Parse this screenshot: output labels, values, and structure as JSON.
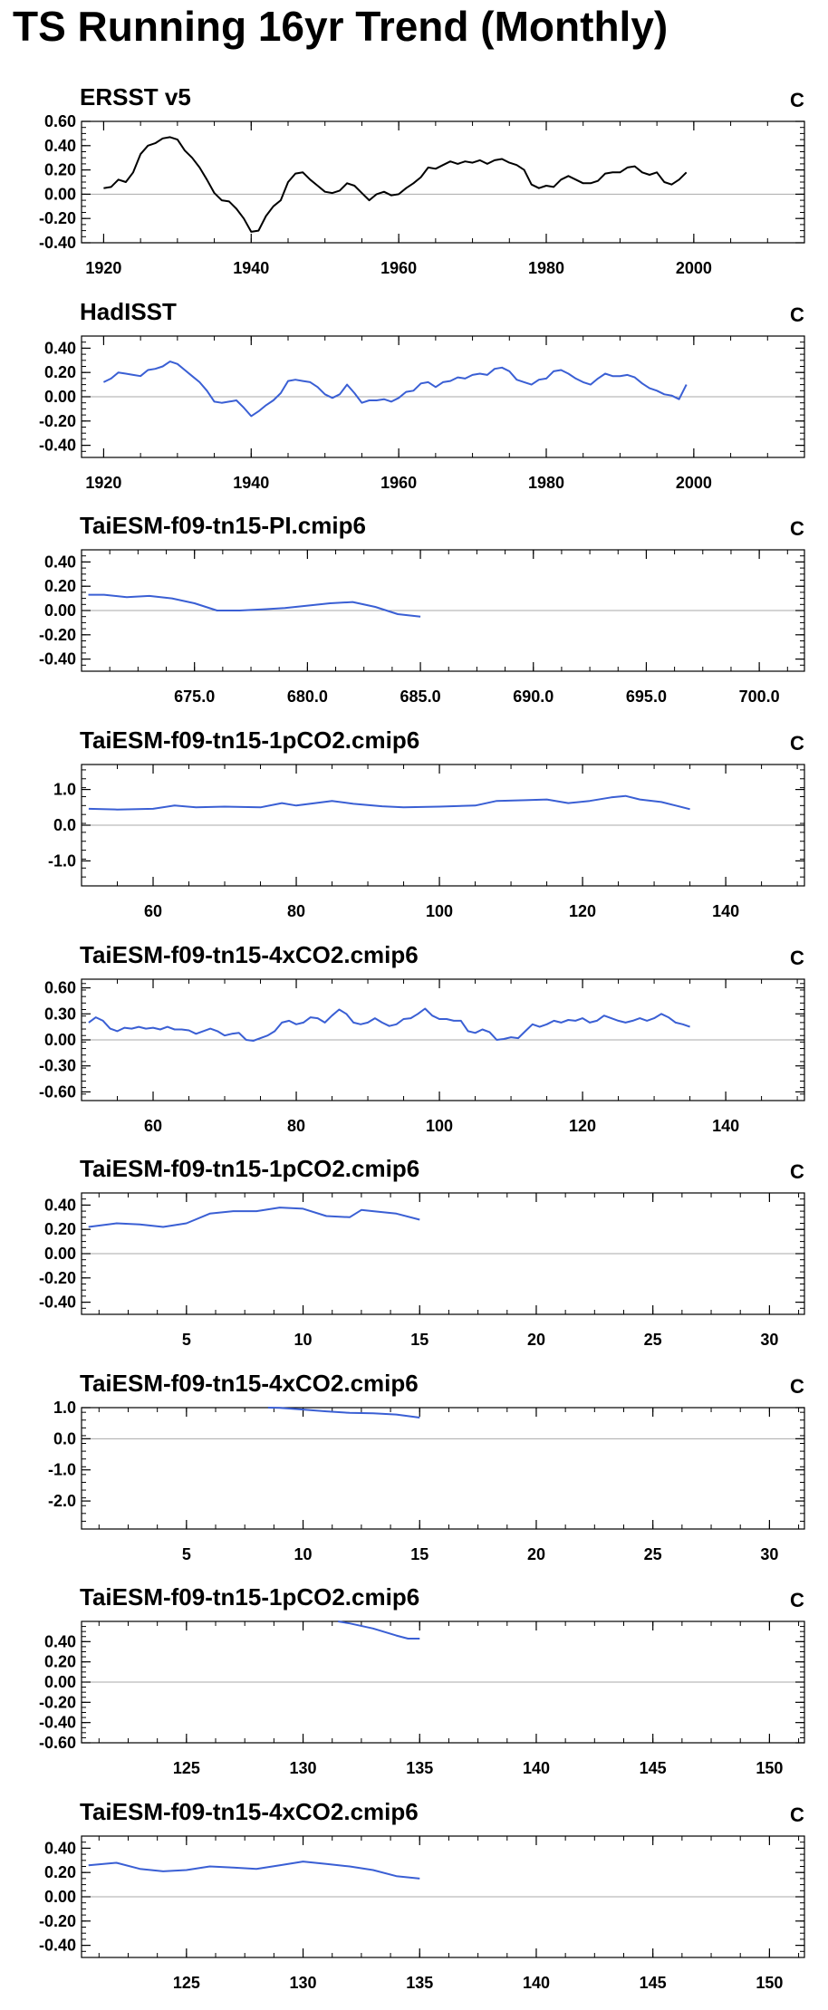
{
  "title": "TS Running 16yr Trend (Monthly)",
  "colors": {
    "obs_line": "#000000",
    "model_line": "#3a5fd4",
    "zero_line": "#aaaaaa",
    "axis": "#000000"
  },
  "chart_data": [
    {
      "type": "line",
      "title": "ERSST v5",
      "units": "C",
      "xlim": [
        1917,
        2015
      ],
      "ylim": [
        -0.4,
        0.6
      ],
      "xticks": [
        1920,
        1940,
        1960,
        1980,
        2000
      ],
      "xtick_labels": [
        "1920",
        "1940",
        "1960",
        "1980",
        "2000"
      ],
      "yticks": [
        -0.4,
        -0.2,
        0.0,
        0.2,
        0.4,
        0.6
      ],
      "ytick_labels": [
        "-0.40",
        "-0.20",
        "0.00",
        "0.20",
        "0.40",
        "0.60"
      ],
      "series": [
        {
          "color": "#000000",
          "x": [
            1920,
            1921,
            1922,
            1923,
            1924,
            1925,
            1926,
            1927,
            1928,
            1929,
            1930,
            1931,
            1932,
            1933,
            1934,
            1935,
            1936,
            1937,
            1938,
            1939,
            1940,
            1941,
            1942,
            1943,
            1944,
            1945,
            1946,
            1947,
            1948,
            1949,
            1950,
            1951,
            1952,
            1953,
            1954,
            1955,
            1956,
            1957,
            1958,
            1959,
            1960,
            1961,
            1962,
            1963,
            1964,
            1965,
            1966,
            1967,
            1968,
            1969,
            1970,
            1971,
            1972,
            1973,
            1974,
            1975,
            1976,
            1977,
            1978,
            1979,
            1980,
            1981,
            1982,
            1983,
            1984,
            1985,
            1986,
            1987,
            1988,
            1989,
            1990,
            1991,
            1992,
            1993,
            1994,
            1995,
            1996,
            1997,
            1998,
            1999
          ],
          "y": [
            0.05,
            0.06,
            0.12,
            0.1,
            0.18,
            0.33,
            0.4,
            0.42,
            0.46,
            0.47,
            0.45,
            0.36,
            0.3,
            0.22,
            0.12,
            0.01,
            -0.05,
            -0.06,
            -0.12,
            -0.2,
            -0.31,
            -0.3,
            -0.18,
            -0.1,
            -0.05,
            0.1,
            0.17,
            0.18,
            0.12,
            0.07,
            0.02,
            0.01,
            0.03,
            0.09,
            0.07,
            0.01,
            -0.05,
            0.0,
            0.02,
            -0.01,
            0.0,
            0.05,
            0.09,
            0.14,
            0.22,
            0.21,
            0.24,
            0.27,
            0.25,
            0.27,
            0.26,
            0.28,
            0.25,
            0.28,
            0.29,
            0.26,
            0.24,
            0.2,
            0.08,
            0.05,
            0.07,
            0.06,
            0.12,
            0.15,
            0.12,
            0.09,
            0.09,
            0.11,
            0.17,
            0.18,
            0.18,
            0.22,
            0.23,
            0.18,
            0.16,
            0.18,
            0.1,
            0.08,
            0.12,
            0.18
          ]
        }
      ]
    },
    {
      "type": "line",
      "title": "HadISST",
      "units": "C",
      "xlim": [
        1917,
        2015
      ],
      "ylim": [
        -0.5,
        0.5
      ],
      "xticks": [
        1920,
        1940,
        1960,
        1980,
        2000
      ],
      "xtick_labels": [
        "1920",
        "1940",
        "1960",
        "1980",
        "2000"
      ],
      "yticks": [
        -0.4,
        -0.2,
        0.0,
        0.2,
        0.4
      ],
      "ytick_labels": [
        "-0.40",
        "-0.20",
        "0.00",
        "0.20",
        "0.40"
      ],
      "series": [
        {
          "color": "#3a5fd4",
          "x": [
            1920,
            1921,
            1922,
            1923,
            1924,
            1925,
            1926,
            1927,
            1928,
            1929,
            1930,
            1931,
            1932,
            1933,
            1934,
            1935,
            1936,
            1937,
            1938,
            1939,
            1940,
            1941,
            1942,
            1943,
            1944,
            1945,
            1946,
            1947,
            1948,
            1949,
            1950,
            1951,
            1952,
            1953,
            1954,
            1955,
            1956,
            1957,
            1958,
            1959,
            1960,
            1961,
            1962,
            1963,
            1964,
            1965,
            1966,
            1967,
            1968,
            1969,
            1970,
            1971,
            1972,
            1973,
            1974,
            1975,
            1976,
            1977,
            1978,
            1979,
            1980,
            1981,
            1982,
            1983,
            1984,
            1985,
            1986,
            1987,
            1988,
            1989,
            1990,
            1991,
            1992,
            1993,
            1994,
            1995,
            1996,
            1997,
            1998,
            1999
          ],
          "y": [
            0.12,
            0.15,
            0.2,
            0.19,
            0.18,
            0.17,
            0.22,
            0.23,
            0.25,
            0.29,
            0.27,
            0.22,
            0.17,
            0.12,
            0.05,
            -0.04,
            -0.05,
            -0.04,
            -0.03,
            -0.09,
            -0.16,
            -0.12,
            -0.07,
            -0.03,
            0.03,
            0.13,
            0.14,
            0.13,
            0.12,
            0.08,
            0.02,
            -0.01,
            0.02,
            0.1,
            0.03,
            -0.05,
            -0.03,
            -0.03,
            -0.02,
            -0.04,
            -0.01,
            0.04,
            0.05,
            0.11,
            0.12,
            0.08,
            0.12,
            0.13,
            0.16,
            0.15,
            0.18,
            0.19,
            0.18,
            0.23,
            0.24,
            0.21,
            0.14,
            0.12,
            0.1,
            0.14,
            0.15,
            0.21,
            0.22,
            0.19,
            0.15,
            0.12,
            0.1,
            0.15,
            0.19,
            0.17,
            0.17,
            0.18,
            0.16,
            0.11,
            0.07,
            0.05,
            0.02,
            0.01,
            -0.02,
            0.1
          ]
        }
      ]
    },
    {
      "type": "line",
      "title": "TaiESM-f09-tn15-PI.cmip6",
      "units": "C",
      "xlim": [
        670,
        702
      ],
      "ylim": [
        -0.5,
        0.5
      ],
      "xticks": [
        675,
        680,
        685,
        690,
        695,
        700
      ],
      "xtick_labels": [
        "675.0",
        "680.0",
        "685.0",
        "690.0",
        "695.0",
        "700.0"
      ],
      "yticks": [
        -0.4,
        -0.2,
        0.0,
        0.2,
        0.4
      ],
      "ytick_labels": [
        "-0.40",
        "-0.20",
        "0.00",
        "0.20",
        "0.40"
      ],
      "series": [
        {
          "color": "#3a5fd4",
          "x": [
            670.3,
            671,
            672,
            673,
            674,
            675,
            676,
            677,
            678,
            679,
            680,
            681,
            682,
            683,
            684,
            685
          ],
          "y": [
            0.13,
            0.13,
            0.11,
            0.12,
            0.1,
            0.06,
            0.0,
            0.0,
            0.01,
            0.02,
            0.04,
            0.06,
            0.07,
            0.03,
            -0.03,
            -0.05
          ]
        }
      ]
    },
    {
      "type": "line",
      "title": "TaiESM-f09-tn15-1pCO2.cmip6",
      "units": "C",
      "xlim": [
        50,
        151
      ],
      "ylim": [
        -1.7,
        1.7
      ],
      "xticks": [
        60,
        80,
        100,
        120,
        140
      ],
      "xtick_labels": [
        "60",
        "80",
        "100",
        "120",
        "140"
      ],
      "yticks": [
        -1.0,
        0.0,
        1.0
      ],
      "ytick_labels": [
        "-1.0",
        "0.0",
        "1.0"
      ],
      "series": [
        {
          "color": "#3a5fd4",
          "x": [
            51,
            55,
            60,
            63,
            66,
            70,
            75,
            78,
            80,
            85,
            88,
            92,
            95,
            100,
            105,
            108,
            112,
            115,
            118,
            121,
            124,
            126,
            128,
            131,
            133,
            135
          ],
          "y": [
            0.46,
            0.44,
            0.46,
            0.55,
            0.5,
            0.52,
            0.5,
            0.62,
            0.55,
            0.68,
            0.6,
            0.53,
            0.5,
            0.52,
            0.55,
            0.68,
            0.7,
            0.72,
            0.62,
            0.68,
            0.78,
            0.82,
            0.72,
            0.65,
            0.55,
            0.45
          ]
        }
      ]
    },
    {
      "type": "line",
      "title": "TaiESM-f09-tn15-4xCO2.cmip6",
      "units": "C",
      "xlim": [
        50,
        151
      ],
      "ylim": [
        -0.7,
        0.7
      ],
      "xticks": [
        60,
        80,
        100,
        120,
        140
      ],
      "xtick_labels": [
        "60",
        "80",
        "100",
        "120",
        "140"
      ],
      "yticks": [
        -0.6,
        -0.3,
        0.0,
        0.3,
        0.6
      ],
      "ytick_labels": [
        "-0.60",
        "-0.30",
        "0.00",
        "0.30",
        "0.60"
      ],
      "series": [
        {
          "color": "#3a5fd4",
          "x": [
            51,
            52,
            53,
            54,
            55,
            56,
            57,
            58,
            59,
            60,
            61,
            62,
            63,
            64,
            65,
            66,
            67,
            68,
            69,
            70,
            71,
            72,
            73,
            74,
            75,
            76,
            77,
            78,
            79,
            80,
            81,
            82,
            83,
            84,
            85,
            86,
            87,
            88,
            89,
            90,
            91,
            92,
            93,
            94,
            95,
            96,
            97,
            98,
            99,
            100,
            101,
            102,
            103,
            104,
            105,
            106,
            107,
            108,
            109,
            110,
            111,
            112,
            113,
            114,
            115,
            116,
            117,
            118,
            119,
            120,
            121,
            122,
            123,
            124,
            125,
            126,
            127,
            128,
            129,
            130,
            131,
            132,
            133,
            134,
            135
          ],
          "y": [
            0.2,
            0.26,
            0.22,
            0.13,
            0.1,
            0.14,
            0.13,
            0.15,
            0.13,
            0.14,
            0.12,
            0.15,
            0.12,
            0.12,
            0.11,
            0.07,
            0.1,
            0.13,
            0.1,
            0.05,
            0.07,
            0.08,
            0.0,
            -0.01,
            0.02,
            0.05,
            0.1,
            0.2,
            0.22,
            0.18,
            0.2,
            0.26,
            0.25,
            0.2,
            0.28,
            0.35,
            0.3,
            0.2,
            0.18,
            0.2,
            0.25,
            0.2,
            0.16,
            0.18,
            0.24,
            0.25,
            0.3,
            0.36,
            0.28,
            0.24,
            0.24,
            0.22,
            0.22,
            0.1,
            0.08,
            0.12,
            0.09,
            0.0,
            0.01,
            0.03,
            0.02,
            0.1,
            0.18,
            0.15,
            0.18,
            0.22,
            0.2,
            0.23,
            0.22,
            0.25,
            0.2,
            0.22,
            0.28,
            0.25,
            0.22,
            0.2,
            0.22,
            0.25,
            0.22,
            0.25,
            0.3,
            0.26,
            0.2,
            0.18,
            0.15
          ]
        }
      ]
    },
    {
      "type": "line",
      "title": "TaiESM-f09-tn15-1pCO2.cmip6",
      "units": "C",
      "xlim": [
        0.5,
        31.5
      ],
      "ylim": [
        -0.5,
        0.5
      ],
      "xticks": [
        5,
        10,
        15,
        20,
        25,
        30
      ],
      "xtick_labels": [
        "5",
        "10",
        "15",
        "20",
        "25",
        "30"
      ],
      "yticks": [
        -0.4,
        -0.2,
        0.0,
        0.2,
        0.4
      ],
      "ytick_labels": [
        "-0.40",
        "-0.20",
        "0.00",
        "0.20",
        "0.40"
      ],
      "series": [
        {
          "color": "#3a5fd4",
          "x": [
            0.8,
            2,
            3,
            4,
            5,
            6,
            7,
            8,
            9,
            10,
            11,
            12,
            12.5,
            13,
            14,
            15
          ],
          "y": [
            0.22,
            0.25,
            0.24,
            0.22,
            0.25,
            0.33,
            0.35,
            0.35,
            0.38,
            0.37,
            0.31,
            0.3,
            0.36,
            0.35,
            0.33,
            0.28
          ]
        }
      ]
    },
    {
      "type": "line",
      "title": "TaiESM-f09-tn15-4xCO2.cmip6",
      "units": "C",
      "xlim": [
        0.5,
        31.5
      ],
      "ylim": [
        -2.9,
        1.0
      ],
      "xticks": [
        5,
        10,
        15,
        20,
        25,
        30
      ],
      "xtick_labels": [
        "5",
        "10",
        "15",
        "20",
        "25",
        "30"
      ],
      "yticks": [
        -2.0,
        -1.0,
        0.0,
        1.0
      ],
      "ytick_labels": [
        "-2.0",
        "-1.0",
        "0.0",
        "1.0"
      ],
      "series": [
        {
          "color": "#3a5fd4",
          "x": [
            8.5,
            9,
            10,
            11,
            12,
            13,
            14,
            15
          ],
          "y": [
            1.0,
            0.99,
            0.94,
            0.88,
            0.83,
            0.82,
            0.78,
            0.68
          ]
        }
      ]
    },
    {
      "type": "line",
      "title": "TaiESM-f09-tn15-1pCO2.cmip6",
      "units": "C",
      "xlim": [
        120.5,
        151.5
      ],
      "ylim": [
        -0.6,
        0.6
      ],
      "xticks": [
        125,
        130,
        135,
        140,
        145,
        150
      ],
      "xtick_labels": [
        "125",
        "130",
        "135",
        "140",
        "145",
        "150"
      ],
      "yticks": [
        -0.6,
        -0.4,
        -0.2,
        0.0,
        0.2,
        0.4
      ],
      "ytick_labels": [
        "-0.60",
        "-0.40",
        "-0.20",
        "0.00",
        "0.20",
        "0.40"
      ],
      "series": [
        {
          "color": "#3a5fd4",
          "x": [
            131.5,
            132,
            133,
            134,
            134.5,
            135
          ],
          "y": [
            0.6,
            0.58,
            0.53,
            0.46,
            0.43,
            0.43
          ]
        }
      ]
    },
    {
      "type": "line",
      "title": "TaiESM-f09-tn15-4xCO2.cmip6",
      "units": "C",
      "xlim": [
        120.5,
        151.5
      ],
      "ylim": [
        -0.5,
        0.5
      ],
      "xticks": [
        125,
        130,
        135,
        140,
        145,
        150
      ],
      "xtick_labels": [
        "125",
        "130",
        "135",
        "140",
        "145",
        "150"
      ],
      "yticks": [
        -0.4,
        -0.2,
        0.0,
        0.2,
        0.4
      ],
      "ytick_labels": [
        "-0.40",
        "-0.20",
        "0.00",
        "0.20",
        "0.40"
      ],
      "series": [
        {
          "color": "#3a5fd4",
          "x": [
            120.8,
            122,
            123,
            124,
            125,
            126,
            127,
            128,
            129,
            130,
            131,
            132,
            133,
            134,
            135
          ],
          "y": [
            0.26,
            0.28,
            0.23,
            0.21,
            0.22,
            0.25,
            0.24,
            0.23,
            0.26,
            0.29,
            0.27,
            0.25,
            0.22,
            0.17,
            0.15
          ]
        }
      ]
    }
  ]
}
